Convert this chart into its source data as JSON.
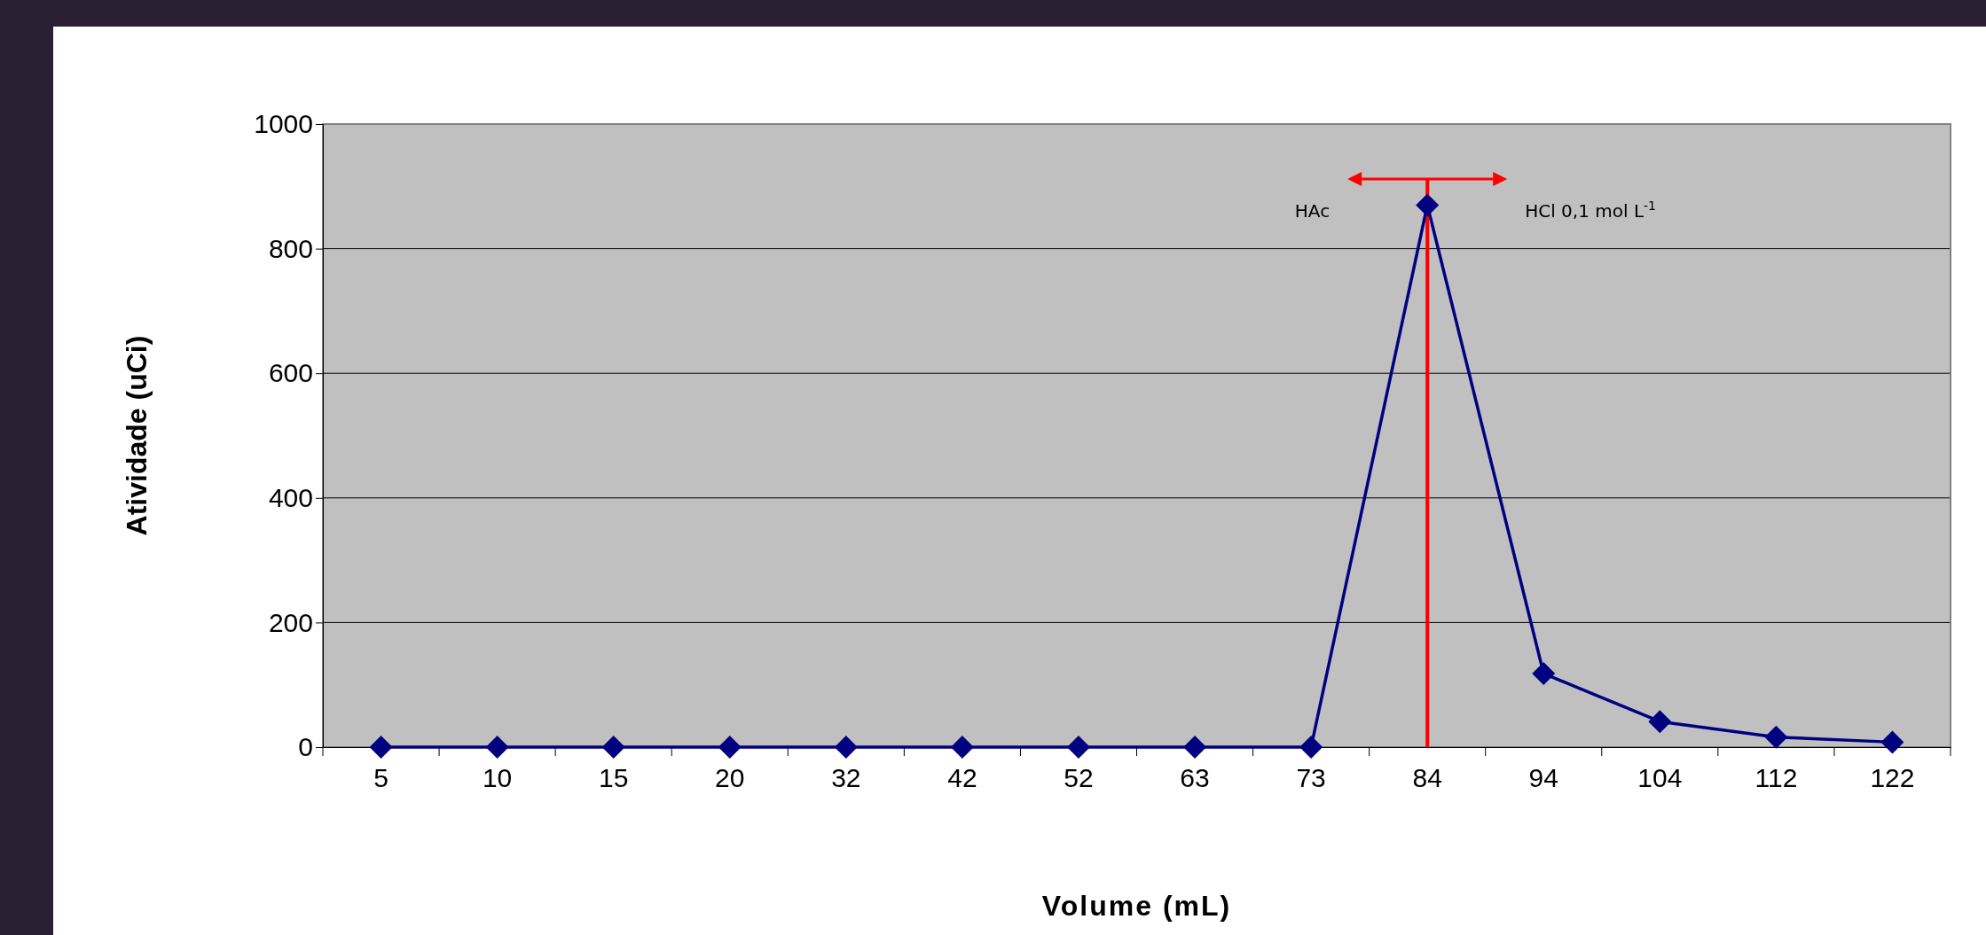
{
  "chart_data": {
    "type": "line",
    "xlabel": "Volume (mL)",
    "ylabel": "Atividade (uCi)",
    "categories": [
      "5",
      "10",
      "15",
      "20",
      "32",
      "42",
      "52",
      "63",
      "73",
      "84",
      "94",
      "104",
      "112",
      "122"
    ],
    "series": [
      {
        "color": "#000080",
        "values": [
          0,
          0,
          0,
          0,
          0,
          0,
          0,
          0,
          0,
          870,
          118,
          41,
          16,
          8
        ]
      }
    ],
    "ylim": [
      0,
      1000
    ],
    "yticks": [
      0,
      200,
      400,
      600,
      800,
      1000
    ],
    "grid": "y",
    "marker": "diamond",
    "ref_lines": [
      {
        "axis": "x",
        "value": "84",
        "color": "#ff0000"
      }
    ],
    "annotations": [
      "HAc",
      "HCl 0,1 mol L$^{-1}$"
    ]
  }
}
